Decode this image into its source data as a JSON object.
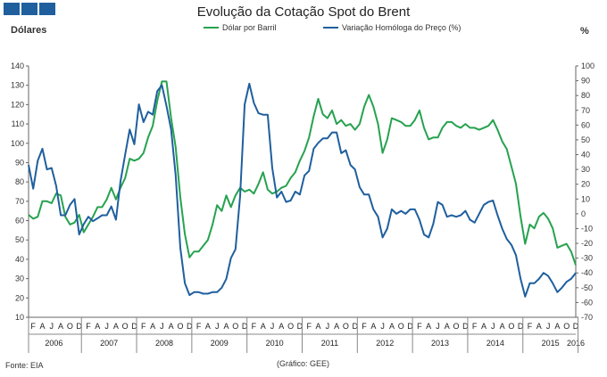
{
  "header": {
    "title": "Evolução da Cotação Spot do Brent",
    "left_unit": "Dólares",
    "right_unit": "%",
    "logo_color": "#1f5f9e"
  },
  "footer": {
    "source": "Fonte: EIA",
    "credit": "(Gráfico: GEE)"
  },
  "chart_data": {
    "type": "line",
    "title": "Evolução da Cotação Spot do Brent",
    "y_left": {
      "label": "Dólares",
      "lim": [
        10,
        140
      ],
      "ticks": [
        10,
        20,
        30,
        40,
        50,
        60,
        70,
        80,
        90,
        100,
        110,
        120,
        130,
        140
      ]
    },
    "y_right": {
      "label": "%",
      "lim": [
        -70,
        100
      ],
      "ticks": [
        -70,
        -60,
        -50,
        -40,
        -30,
        -20,
        -10,
        0,
        10,
        20,
        30,
        40,
        50,
        60,
        70,
        80,
        90,
        100
      ]
    },
    "grid": false,
    "legend_position": "top",
    "x_month_letters": [
      "F",
      "A",
      "J",
      "A",
      "O",
      "D"
    ],
    "years": [
      "2006",
      "2007",
      "2008",
      "2009",
      "2010",
      "2011",
      "2012",
      "2013",
      "2014",
      "2015",
      "2016"
    ],
    "x_start": "2006-01",
    "series": [
      {
        "name": "Dólar por Barril",
        "axis": "left",
        "color": "#26a24f",
        "values": [
          63,
          61,
          62,
          70,
          70,
          69,
          74,
          73,
          62,
          58,
          59,
          63,
          54,
          58,
          62,
          67,
          67,
          71,
          77,
          71,
          77,
          82,
          92,
          91,
          92,
          95,
          103,
          109,
          122,
          132,
          132,
          113,
          98,
          72,
          53,
          41,
          44,
          44,
          47,
          50,
          58,
          68,
          65,
          73,
          67,
          73,
          77,
          75,
          76,
          74,
          79,
          85,
          76,
          74,
          75,
          77,
          78,
          82,
          85,
          91,
          96,
          103,
          114,
          123,
          115,
          113,
          117,
          110,
          112,
          109,
          110,
          107,
          110,
          119,
          125,
          119,
          110,
          95,
          102,
          113,
          112,
          111,
          109,
          109,
          112,
          117,
          108,
          102,
          103,
          103,
          108,
          111,
          111,
          109,
          108,
          110,
          108,
          108,
          107,
          108,
          109,
          112,
          107,
          101,
          97,
          88,
          79,
          62,
          48,
          58,
          56,
          62,
          64,
          61,
          56,
          46,
          47,
          48,
          44,
          37
        ]
      },
      {
        "name": "Variação Homóloga do Preço (%)",
        "axis": "right",
        "color": "#1f5f9e",
        "values": [
          33,
          17,
          36,
          44,
          30,
          31,
          19,
          -1,
          -1,
          6,
          10,
          -14,
          -7,
          -2,
          -5,
          -3,
          -1,
          -1,
          5,
          -4,
          22,
          40,
          57,
          47,
          74,
          62,
          69,
          67,
          83,
          87,
          73,
          57,
          26,
          -23,
          -47,
          -55,
          -53,
          -53,
          -54,
          -54,
          -53,
          -53,
          -50,
          -44,
          -30,
          -24,
          12,
          74,
          88,
          75,
          68,
          67,
          67,
          31,
          11,
          15,
          8,
          9,
          15,
          13,
          26,
          29,
          44,
          48,
          51,
          51,
          55,
          55,
          41,
          43,
          33,
          30,
          18,
          13,
          13,
          3,
          -2,
          -16,
          -10,
          3,
          0,
          2,
          0,
          3,
          3,
          -4,
          -14,
          -16,
          -7,
          8,
          6,
          -2,
          -1,
          -2,
          -1,
          2,
          -4,
          -6,
          0,
          6,
          8,
          9,
          -1,
          -10,
          -17,
          -21,
          -28,
          -44,
          -56,
          -47,
          -47,
          -44,
          -40,
          -42,
          -47,
          -53,
          -50,
          -46,
          -44,
          -40
        ]
      }
    ]
  }
}
